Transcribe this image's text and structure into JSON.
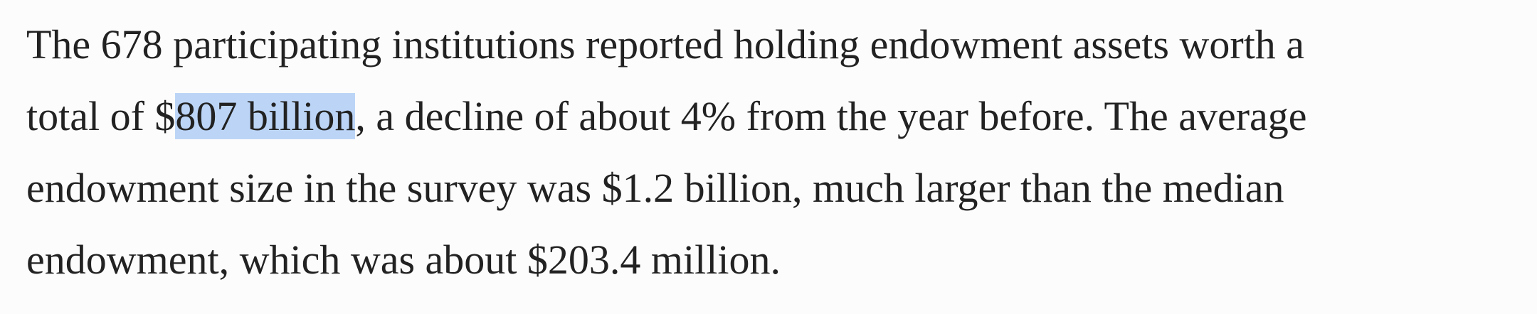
{
  "paragraph": {
    "line_1": "The 678 participating institutions reported holding endowment assets worth a",
    "line_2": {
      "before": "total of $",
      "selected": "807 billion",
      "after": ", a decline of about 4% from the year before. The average"
    },
    "line_3": "endowment size in the survey was $1.2 billion, much larger than the median",
    "line_4": "endowment, which was about $203.4 million."
  }
}
